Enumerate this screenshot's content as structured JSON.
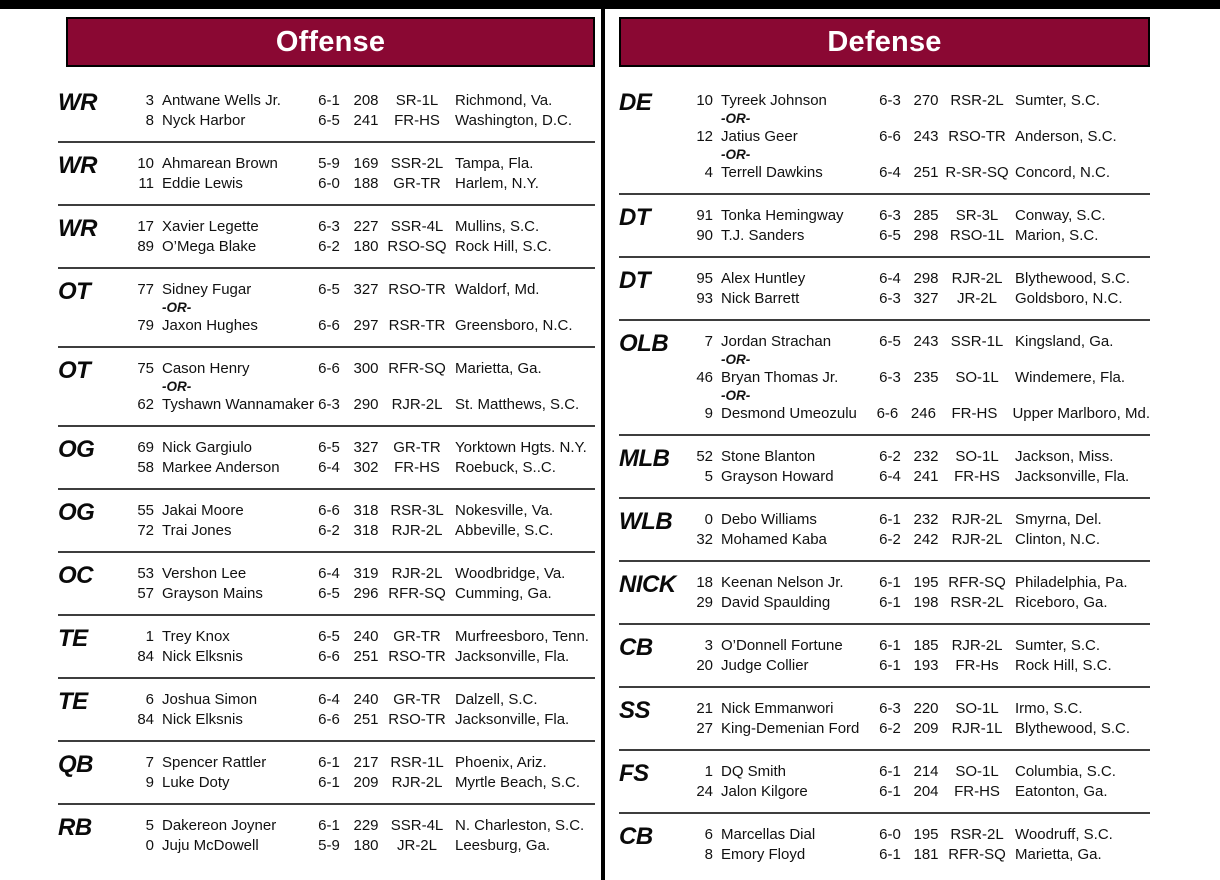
{
  "theme": {
    "accent_color": "#8A0833",
    "top_bar_color": "#000000",
    "divider_color": "#000000",
    "separator_color": "#3d3d3d",
    "header_text_color": "#ffffff"
  },
  "or_label": "-OR-",
  "columns": [
    {
      "id": "offense",
      "title": "Offense",
      "groups": [
        {
          "position": "WR",
          "rows": [
            {
              "type": "player",
              "num": "3",
              "name": "Antwane Wells Jr.",
              "ht": "6-1",
              "wt": "208",
              "cls": "SR-1L",
              "hometown": "Richmond, Va."
            },
            {
              "type": "player",
              "num": "8",
              "name": "Nyck Harbor",
              "ht": "6-5",
              "wt": "241",
              "cls": "FR-HS",
              "hometown": "Washington, D.C."
            }
          ]
        },
        {
          "position": "WR",
          "rows": [
            {
              "type": "player",
              "num": "10",
              "name": "Ahmarean Brown",
              "ht": "5-9",
              "wt": "169",
              "cls": "SSR-2L",
              "hometown": "Tampa, Fla."
            },
            {
              "type": "player",
              "num": "11",
              "name": "Eddie Lewis",
              "ht": "6-0",
              "wt": "188",
              "cls": "GR-TR",
              "hometown": "Harlem, N.Y."
            }
          ]
        },
        {
          "position": "WR",
          "rows": [
            {
              "type": "player",
              "num": "17",
              "name": "Xavier Legette",
              "ht": "6-3",
              "wt": "227",
              "cls": "SSR-4L",
              "hometown": "Mullins, S.C."
            },
            {
              "type": "player",
              "num": "89",
              "name": "O’Mega Blake",
              "ht": "6-2",
              "wt": "180",
              "cls": "RSO-SQ",
              "hometown": "Rock Hill, S.C."
            }
          ]
        },
        {
          "position": "OT",
          "rows": [
            {
              "type": "player",
              "num": "77",
              "name": "Sidney Fugar",
              "ht": "6-5",
              "wt": "327",
              "cls": "RSO-TR",
              "hometown": "Waldorf, Md."
            },
            {
              "type": "or"
            },
            {
              "type": "player",
              "num": "79",
              "name": "Jaxon Hughes",
              "ht": "6-6",
              "wt": "297",
              "cls": "RSR-TR",
              "hometown": "Greensboro, N.C."
            }
          ]
        },
        {
          "position": "OT",
          "rows": [
            {
              "type": "player",
              "num": "75",
              "name": "Cason Henry",
              "ht": "6-6",
              "wt": "300",
              "cls": "RFR-SQ",
              "hometown": "Marietta, Ga."
            },
            {
              "type": "or"
            },
            {
              "type": "player",
              "num": "62",
              "name": "Tyshawn Wannamaker",
              "ht": "6-3",
              "wt": "290",
              "cls": "RJR-2L",
              "hometown": "St. Matthews, S.C."
            }
          ]
        },
        {
          "position": "OG",
          "rows": [
            {
              "type": "player",
              "num": "69",
              "name": "Nick Gargiulo",
              "ht": "6-5",
              "wt": "327",
              "cls": "GR-TR",
              "hometown": "Yorktown Hgts. N.Y."
            },
            {
              "type": "player",
              "num": "58",
              "name": "Markee Anderson",
              "ht": "6-4",
              "wt": "302",
              "cls": "FR-HS",
              "hometown": "Roebuck, S..C."
            }
          ]
        },
        {
          "position": "OG",
          "rows": [
            {
              "type": "player",
              "num": "55",
              "name": "Jakai Moore",
              "ht": "6-6",
              "wt": "318",
              "cls": "RSR-3L",
              "hometown": "Nokesville, Va."
            },
            {
              "type": "player",
              "num": "72",
              "name": "Trai Jones",
              "ht": "6-2",
              "wt": "318",
              "cls": "RJR-2L",
              "hometown": "Abbeville, S.C."
            }
          ]
        },
        {
          "position": "OC",
          "rows": [
            {
              "type": "player",
              "num": "53",
              "name": "Vershon Lee",
              "ht": "6-4",
              "wt": "319",
              "cls": "RJR-2L",
              "hometown": "Woodbridge, Va."
            },
            {
              "type": "player",
              "num": "57",
              "name": "Grayson Mains",
              "ht": "6-5",
              "wt": "296",
              "cls": "RFR-SQ",
              "hometown": "Cumming, Ga."
            }
          ]
        },
        {
          "position": "TE",
          "rows": [
            {
              "type": "player",
              "num": "1",
              "name": "Trey Knox",
              "ht": "6-5",
              "wt": "240",
              "cls": "GR-TR",
              "hometown": "Murfreesboro, Tenn."
            },
            {
              "type": "player",
              "num": "84",
              "name": "Nick Elksnis",
              "ht": "6-6",
              "wt": "251",
              "cls": "RSO-TR",
              "hometown": "Jacksonville, Fla."
            }
          ]
        },
        {
          "position": "TE",
          "rows": [
            {
              "type": "player",
              "num": "6",
              "name": "Joshua Simon",
              "ht": "6-4",
              "wt": "240",
              "cls": "GR-TR",
              "hometown": "Dalzell, S.C."
            },
            {
              "type": "player",
              "num": "84",
              "name": "Nick Elksnis",
              "ht": "6-6",
              "wt": "251",
              "cls": "RSO-TR",
              "hometown": "Jacksonville, Fla."
            }
          ]
        },
        {
          "position": "QB",
          "rows": [
            {
              "type": "player",
              "num": "7",
              "name": "Spencer Rattler",
              "ht": "6-1",
              "wt": "217",
              "cls": "RSR-1L",
              "hometown": "Phoenix, Ariz."
            },
            {
              "type": "player",
              "num": "9",
              "name": "Luke Doty",
              "ht": "6-1",
              "wt": "209",
              "cls": "RJR-2L",
              "hometown": "Myrtle Beach, S.C."
            }
          ]
        },
        {
          "position": "RB",
          "rows": [
            {
              "type": "player",
              "num": "5",
              "name": "Dakereon Joyner",
              "ht": "6-1",
              "wt": "229",
              "cls": "SSR-4L",
              "hometown": "N. Charleston, S.C."
            },
            {
              "type": "player",
              "num": "0",
              "name": "Juju McDowell",
              "ht": "5-9",
              "wt": "180",
              "cls": "JR-2L",
              "hometown": "Leesburg, Ga."
            }
          ]
        }
      ]
    },
    {
      "id": "defense",
      "title": "Defense",
      "groups": [
        {
          "position": "DE",
          "rows": [
            {
              "type": "player",
              "num": "10",
              "name": "Tyreek Johnson",
              "ht": "6-3",
              "wt": "270",
              "cls": "RSR-2L",
              "hometown": "Sumter, S.C."
            },
            {
              "type": "or"
            },
            {
              "type": "player",
              "num": "12",
              "name": "Jatius Geer",
              "ht": "6-6",
              "wt": "243",
              "cls": "RSO-TR",
              "hometown": "Anderson, S.C."
            },
            {
              "type": "or"
            },
            {
              "type": "player",
              "num": "4",
              "name": "Terrell Dawkins",
              "ht": "6-4",
              "wt": "251",
              "cls": "R-SR-SQ",
              "hometown": "Concord, N.C."
            }
          ]
        },
        {
          "position": "DT",
          "rows": [
            {
              "type": "player",
              "num": "91",
              "name": "Tonka Hemingway",
              "ht": "6-3",
              "wt": "285",
              "cls": "SR-3L",
              "hometown": "Conway, S.C."
            },
            {
              "type": "player",
              "num": "90",
              "name": "T.J. Sanders",
              "ht": "6-5",
              "wt": "298",
              "cls": "RSO-1L",
              "hometown": "Marion, S.C."
            }
          ]
        },
        {
          "position": "DT",
          "rows": [
            {
              "type": "player",
              "num": "95",
              "name": "Alex Huntley",
              "ht": "6-4",
              "wt": "298",
              "cls": "RJR-2L",
              "hometown": "Blythewood, S.C."
            },
            {
              "type": "player",
              "num": "93",
              "name": "Nick Barrett",
              "ht": "6-3",
              "wt": "327",
              "cls": "JR-2L",
              "hometown": "Goldsboro, N.C."
            }
          ]
        },
        {
          "position": "OLB",
          "rows": [
            {
              "type": "player",
              "num": "7",
              "name": "Jordan Strachan",
              "ht": "6-5",
              "wt": "243",
              "cls": "SSR-1L",
              "hometown": "Kingsland, Ga."
            },
            {
              "type": "or"
            },
            {
              "type": "player",
              "num": "46",
              "name": "Bryan Thomas Jr.",
              "ht": "6-3",
              "wt": "235",
              "cls": "SO-1L",
              "hometown": "Windemere, Fla."
            },
            {
              "type": "or"
            },
            {
              "type": "player",
              "num": "9",
              "name": "Desmond Umeozulu",
              "ht": "6-6",
              "wt": "246",
              "cls": "FR-HS",
              "hometown": "Upper Marlboro, Md."
            }
          ]
        },
        {
          "position": "MLB",
          "rows": [
            {
              "type": "player",
              "num": "52",
              "name": "Stone Blanton",
              "ht": "6-2",
              "wt": "232",
              "cls": "SO-1L",
              "hometown": "Jackson, Miss."
            },
            {
              "type": "player",
              "num": "5",
              "name": "Grayson Howard",
              "ht": "6-4",
              "wt": "241",
              "cls": "FR-HS",
              "hometown": "Jacksonville, Fla."
            }
          ]
        },
        {
          "position": "WLB",
          "rows": [
            {
              "type": "player",
              "num": "0",
              "name": "Debo Williams",
              "ht": "6-1",
              "wt": "232",
              "cls": "RJR-2L",
              "hometown": "Smyrna, Del."
            },
            {
              "type": "player",
              "num": "32",
              "name": "Mohamed Kaba",
              "ht": "6-2",
              "wt": "242",
              "cls": "RJR-2L",
              "hometown": "Clinton, N.C."
            }
          ]
        },
        {
          "position": "NICK",
          "rows": [
            {
              "type": "player",
              "num": "18",
              "name": "Keenan Nelson Jr.",
              "ht": "6-1",
              "wt": "195",
              "cls": "RFR-SQ",
              "hometown": "Philadelphia, Pa."
            },
            {
              "type": "player",
              "num": "29",
              "name": "David Spaulding",
              "ht": "6-1",
              "wt": "198",
              "cls": "RSR-2L",
              "hometown": "Riceboro, Ga."
            }
          ]
        },
        {
          "position": "CB",
          "rows": [
            {
              "type": "player",
              "num": "3",
              "name": "O’Donnell Fortune",
              "ht": "6-1",
              "wt": "185",
              "cls": "RJR-2L",
              "hometown": "Sumter, S.C."
            },
            {
              "type": "player",
              "num": "20",
              "name": "Judge Collier",
              "ht": "6-1",
              "wt": "193",
              "cls": "FR-Hs",
              "hometown": "Rock Hill, S.C."
            }
          ]
        },
        {
          "position": "SS",
          "rows": [
            {
              "type": "player",
              "num": "21",
              "name": "Nick Emmanwori",
              "ht": "6-3",
              "wt": "220",
              "cls": "SO-1L",
              "hometown": "Irmo, S.C."
            },
            {
              "type": "player",
              "num": "27",
              "name": "King-Demenian Ford",
              "ht": "6-2",
              "wt": "209",
              "cls": "RJR-1L",
              "hometown": "Blythewood, S.C."
            }
          ]
        },
        {
          "position": "FS",
          "rows": [
            {
              "type": "player",
              "num": "1",
              "name": "DQ Smith",
              "ht": "6-1",
              "wt": "214",
              "cls": "SO-1L",
              "hometown": "Columbia, S.C."
            },
            {
              "type": "player",
              "num": "24",
              "name": "Jalon Kilgore",
              "ht": "6-1",
              "wt": "204",
              "cls": "FR-HS",
              "hometown": "Eatonton, Ga."
            }
          ]
        },
        {
          "position": "CB",
          "rows": [
            {
              "type": "player",
              "num": "6",
              "name": "Marcellas Dial",
              "ht": "6-0",
              "wt": "195",
              "cls": "RSR-2L",
              "hometown": "Woodruff, S.C."
            },
            {
              "type": "player",
              "num": "8",
              "name": "Emory Floyd",
              "ht": "6-1",
              "wt": "181",
              "cls": "RFR-SQ",
              "hometown": "Marietta, Ga."
            }
          ]
        }
      ]
    }
  ]
}
